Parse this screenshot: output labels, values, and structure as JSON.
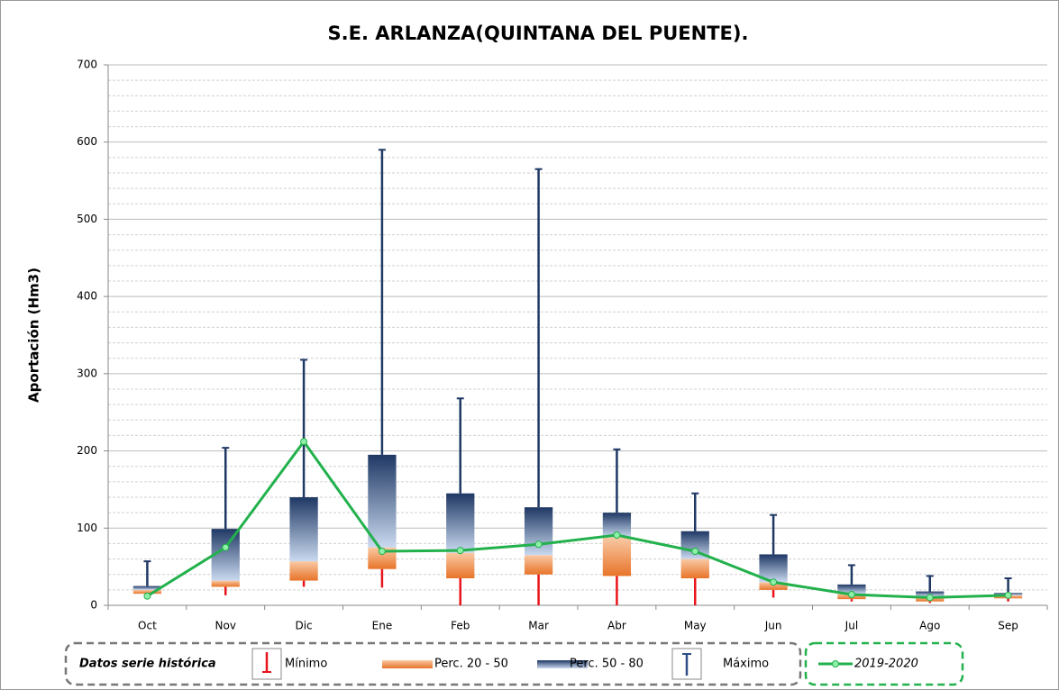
{
  "chart_data": {
    "type": "box",
    "title": "S.E. ARLANZA(QUINTANA DEL PUENTE).",
    "y_label": "Aportación (Hm3)",
    "legend_title": "Datos serie histórica",
    "categories": [
      "Oct",
      "Nov",
      "Dic",
      "Ene",
      "Feb",
      "Mar",
      "Abr",
      "May",
      "Jun",
      "Jul",
      "Ago",
      "Sep"
    ],
    "series": [
      {
        "name": "Mínimo",
        "color": "#e8141a",
        "values": [
          8,
          13,
          24,
          23,
          0,
          0,
          0,
          0,
          10,
          5,
          3,
          5
        ]
      },
      {
        "name": "Perc. 20 - 50",
        "color": "#ee8c4a",
        "low": [
          15,
          24,
          32,
          47,
          35,
          40,
          38,
          35,
          20,
          8,
          5,
          9
        ],
        "values": [
          20,
          32,
          57,
          75,
          68,
          65,
          88,
          60,
          30,
          15,
          12,
          13
        ]
      },
      {
        "name": "Perc. 50 - 80",
        "color": "#22427a",
        "values": [
          25,
          99,
          140,
          195,
          145,
          127,
          120,
          96,
          66,
          27,
          18,
          16
        ]
      },
      {
        "name": "Máximo",
        "color": "#1f3864",
        "values": [
          57,
          204,
          318,
          590,
          268,
          565,
          202,
          145,
          117,
          52,
          38,
          35
        ]
      },
      {
        "name": "2019-2020",
        "color": "#22b14c",
        "values": [
          12,
          75,
          212,
          70,
          71,
          79,
          91,
          70,
          30,
          14,
          10,
          13
        ]
      }
    ],
    "ylim": [
      0,
      700
    ],
    "yticks": [
      0,
      100,
      200,
      300,
      400,
      500,
      600,
      700
    ],
    "grid": true
  }
}
